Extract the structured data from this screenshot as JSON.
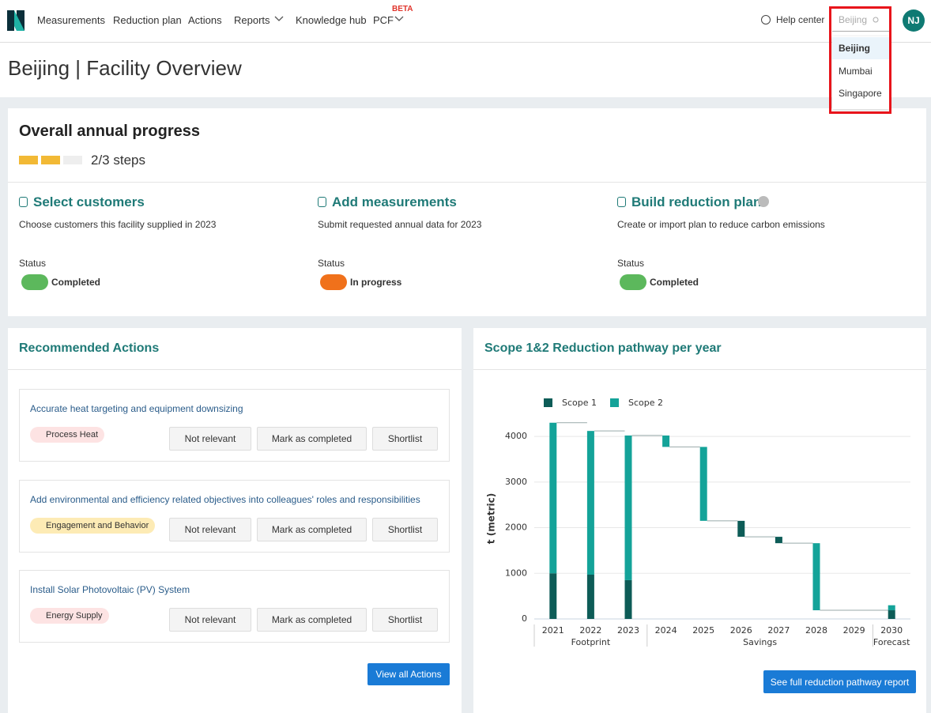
{
  "nav": {
    "items": [
      "Measurements",
      "Reduction plan",
      "Actions",
      "Reports",
      "Knowledge hub",
      "PCF"
    ],
    "beta": "BETA",
    "help": "Help center",
    "search": "Beijing",
    "locations": [
      "Beijing",
      "Mumbai",
      "Singapore"
    ],
    "avatar": "NJ"
  },
  "page_title": "Beijing | Facility Overview",
  "progress": {
    "title": "Overall annual progress",
    "steps_text": "2/3 steps",
    "steps": [
      {
        "title": "Select customers",
        "description": "Choose customers this facility supplied in 2023",
        "status_label": "Status",
        "status": "Completed"
      },
      {
        "title": "Add measurements",
        "description": "Submit requested annual data for 2023",
        "status_label": "Status",
        "status": "In progress"
      },
      {
        "title": "Build reduction plan",
        "description": "Create or import plan to reduce carbon emissions",
        "status_label": "Status",
        "status": "Completed"
      }
    ]
  },
  "actions": {
    "title": "Recommended Actions",
    "items": [
      {
        "title": "Accurate heat targeting and equipment downsizing",
        "tag": "Process Heat"
      },
      {
        "title": "Add environmental and efficiency related objectives into colleagues' roles and responsibilities",
        "tag": "Engagement and Behavior"
      },
      {
        "title": "Install Solar Photovoltaic (PV) System",
        "tag": "Energy Supply"
      }
    ],
    "buttons": [
      "Not relevant",
      "Mark as completed",
      "Shortlist"
    ],
    "view_all": "View all Actions"
  },
  "chart_data": {
    "type": "waterfall",
    "title": "Scope 1&2 Reduction pathway per year",
    "y_label": "t (metric)",
    "categories": [
      "2021",
      "2022",
      "2023",
      "2024",
      "2025",
      "2026",
      "2027",
      "2028",
      "2029",
      "2030"
    ],
    "groups": [
      {
        "label": "Footprint",
        "count": 3
      },
      {
        "label": "Savings",
        "count": 6
      },
      {
        "label": "Forecast",
        "count": 1
      }
    ],
    "series": [
      {
        "name": "Scope 1",
        "color": "#0d5c57",
        "values": [
          1000,
          970,
          850,
          0,
          0,
          -350,
          -140,
          0,
          null,
          190
        ]
      },
      {
        "name": "Scope 2",
        "color": "#14a399",
        "values": [
          3300,
          3150,
          3170,
          -250,
          -1620,
          0,
          0,
          -1470,
          null,
          110
        ]
      }
    ],
    "ylim": [
      0,
      4400
    ],
    "yticks": [
      0,
      1000,
      2000,
      3000,
      4000
    ],
    "grid": true,
    "legend": "top-left",
    "button": "See full reduction pathway report"
  }
}
